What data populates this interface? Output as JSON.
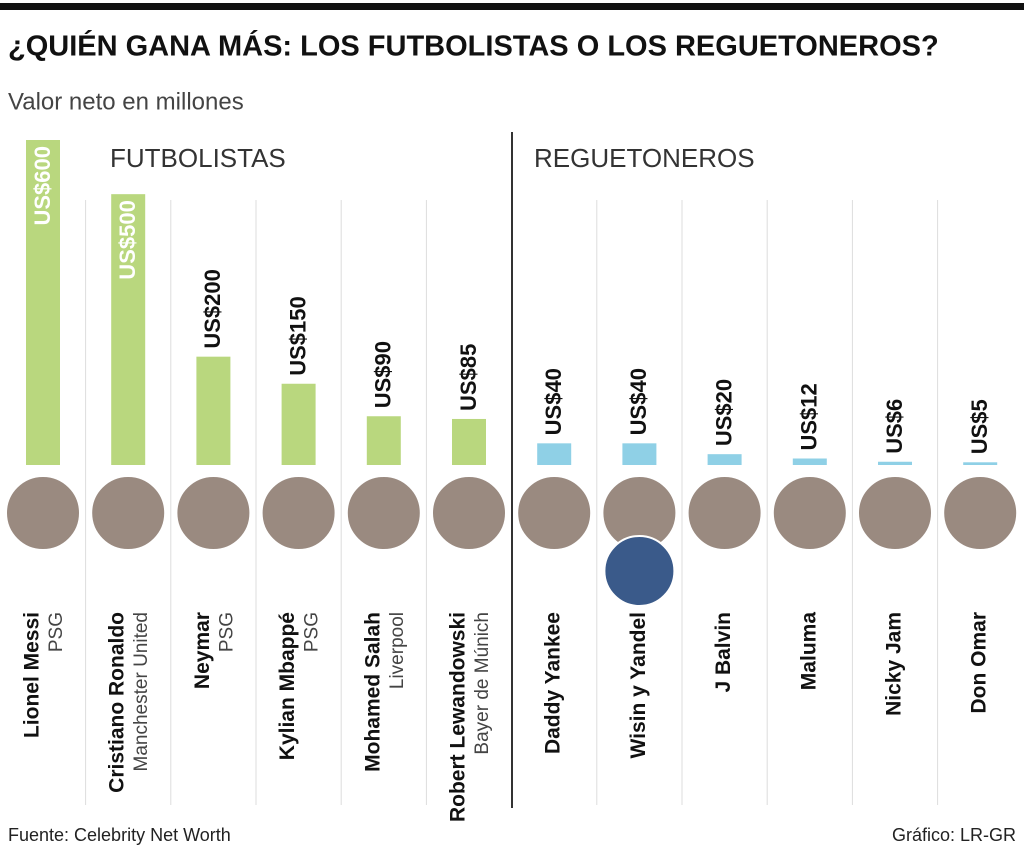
{
  "chart_data": {
    "type": "bar",
    "title": "¿QUIÉN GANA MÁS: LOS FUTBOLISTAS O LOS REGUETONEROS?",
    "subtitle": "Valor neto en millones",
    "groups": [
      {
        "label": "FUTBOLISTAS",
        "color": "#b9d77e",
        "categories": [
          "Lionel Messi",
          "Cristiano Ronaldo",
          "Neymar",
          "Kylian Mbappé",
          "Mohamed Salah",
          "Robert Lewandowski"
        ],
        "details": [
          "PSG",
          "Manchester United",
          "PSG",
          "PSG",
          "Liverpool",
          "Bayer de Múnich"
        ],
        "values": [
          600,
          500,
          200,
          150,
          90,
          85
        ],
        "value_labels": [
          "US$600",
          "US$500",
          "US$200",
          "US$150",
          "US$90",
          "US$85"
        ]
      },
      {
        "label": "REGUETONEROS",
        "color": "#8fd0e6",
        "categories": [
          "Daddy Yankee",
          "Wisin y Yandel",
          "J Balvin",
          "Maluma",
          "Nicky Jam",
          "Don Omar"
        ],
        "values": [
          40,
          40,
          20,
          12,
          6,
          5
        ],
        "value_labels": [
          "US$40",
          "US$40",
          "US$20",
          "US$12",
          "US$6",
          "US$5"
        ]
      }
    ],
    "source": "Fuente: Celebrity Net Worth",
    "credit": "Gráfico: LR-GR"
  }
}
